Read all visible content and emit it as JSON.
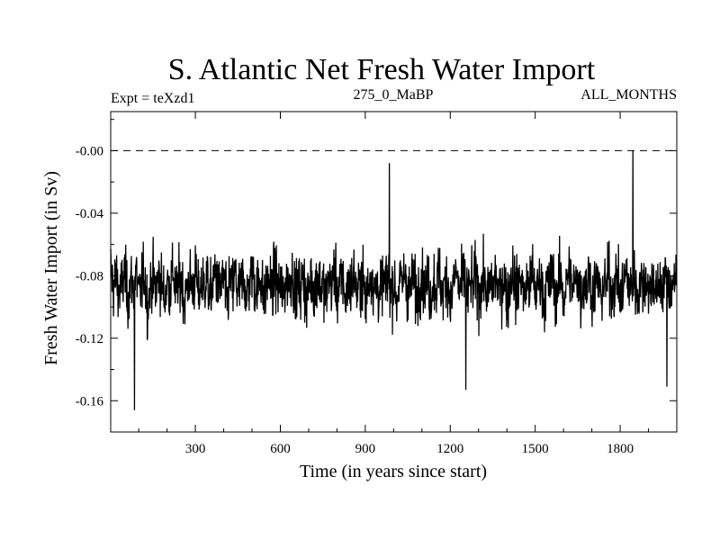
{
  "chart_data": {
    "type": "line",
    "title": "S. Atlantic Net Fresh Water Import",
    "subtitle_left": "Expt = teXzd1",
    "subtitle_center": "275_0_MaBP",
    "subtitle_right": "ALL_MONTHS",
    "xlabel": "Time (in years since start)",
    "ylabel": "Fresh Water Import (in Sv)",
    "xlim": [
      1,
      2000
    ],
    "ylim": [
      -0.18,
      0.025
    ],
    "xticks": [
      300,
      600,
      900,
      1200,
      1500,
      1800
    ],
    "xtick_labels": [
      "300",
      "600",
      "900",
      "1200",
      "1500",
      "1800"
    ],
    "yticks": [
      -0.16,
      -0.12,
      -0.08,
      -0.04,
      0.0
    ],
    "ytick_labels": [
      "-0.16",
      "-0.12",
      "-0.08",
      "-0.04",
      "-0.00"
    ],
    "reference_line": {
      "y": 0.0,
      "style": "dashed"
    },
    "series": [
      {
        "name": "Net fresh water import",
        "description": "annual series, roughly 2000 points fluctuating around -0.085 Sv",
        "x_start": 1,
        "x_step": 10,
        "values": [
          -0.058,
          -0.092,
          -0.071,
          -0.105,
          -0.088,
          -0.064,
          -0.118,
          -0.079,
          -0.095,
          -0.062,
          -0.11,
          -0.084,
          -0.07,
          -0.128,
          -0.09,
          -0.075,
          -0.099,
          -0.066,
          -0.087,
          -0.113,
          -0.081,
          -0.094,
          -0.059,
          -0.102,
          -0.086,
          -0.073,
          -0.121,
          -0.088,
          -0.078,
          -0.097,
          -0.065,
          -0.108,
          -0.083,
          -0.091,
          -0.07,
          -0.116,
          -0.085,
          -0.061,
          -0.098,
          -0.089,
          -0.076,
          -0.125,
          -0.082,
          -0.093,
          -0.067,
          -0.104,
          -0.087,
          -0.072,
          -0.111,
          -0.08,
          -0.057,
          -0.096,
          -0.09,
          -0.069,
          -0.119,
          -0.084,
          -0.077,
          -0.101,
          -0.063,
          -0.092,
          -0.086,
          -0.114,
          -0.074,
          -0.089,
          -0.06,
          -0.107,
          -0.083,
          -0.095,
          -0.068,
          -0.122,
          -0.088,
          -0.079,
          -0.1,
          -0.064,
          -0.091,
          -0.085,
          -0.112,
          -0.071,
          -0.094,
          -0.058,
          -0.103,
          -0.087,
          -0.076,
          -0.117,
          -0.082,
          -0.09,
          -0.066,
          -0.106,
          -0.084,
          -0.073,
          -0.12,
          -0.089,
          -0.062,
          -0.097,
          -0.086,
          -0.11,
          -0.075,
          -0.092,
          -0.069,
          -0.101,
          -0.083,
          -0.115,
          -0.078,
          -0.088,
          -0.061,
          -0.105,
          -0.09,
          -0.072,
          -0.118,
          -0.085,
          -0.067,
          -0.096,
          -0.081,
          -0.109,
          -0.077,
          -0.093,
          -0.063,
          -0.104,
          -0.087,
          -0.074,
          -0.123,
          -0.084,
          -0.059,
          -0.098,
          -0.089,
          -0.071,
          -0.112,
          -0.08,
          -0.094,
          -0.065,
          -0.107,
          -0.086,
          -0.076,
          -0.116,
          -0.083,
          -0.091,
          -0.068,
          -0.102,
          -0.088,
          -0.073,
          -0.119,
          -0.085,
          -0.06,
          -0.099,
          -0.09,
          -0.07,
          -0.113,
          -0.082,
          -0.095,
          -0.064,
          -0.106,
          -0.087,
          -0.075,
          -0.121,
          -0.084,
          -0.092,
          -0.066,
          -0.103,
          -0.089,
          -0.072,
          -0.117,
          -0.081,
          -0.062,
          -0.097,
          -0.086,
          -0.069,
          -0.111,
          -0.079,
          -0.093,
          -0.058,
          -0.108,
          -0.088,
          -0.074,
          -0.114,
          -0.083,
          -0.09,
          -0.067,
          -0.1,
          -0.087,
          -0.071,
          -0.12,
          -0.085,
          -0.063,
          -0.096,
          -0.089,
          -0.073,
          -0.11,
          -0.08,
          -0.094,
          -0.065,
          -0.104,
          -0.086,
          -0.077,
          -0.115,
          -0.082,
          -0.091,
          -0.068,
          -0.102,
          -0.088,
          -0.072
        ],
        "extremes": [
          {
            "x": 85,
            "y": -0.166
          },
          {
            "x": 985,
            "y": -0.008
          },
          {
            "x": 1845,
            "y": 0.0
          },
          {
            "x": 1965,
            "y": -0.151
          },
          {
            "x": 1255,
            "y": -0.153
          }
        ]
      }
    ]
  }
}
